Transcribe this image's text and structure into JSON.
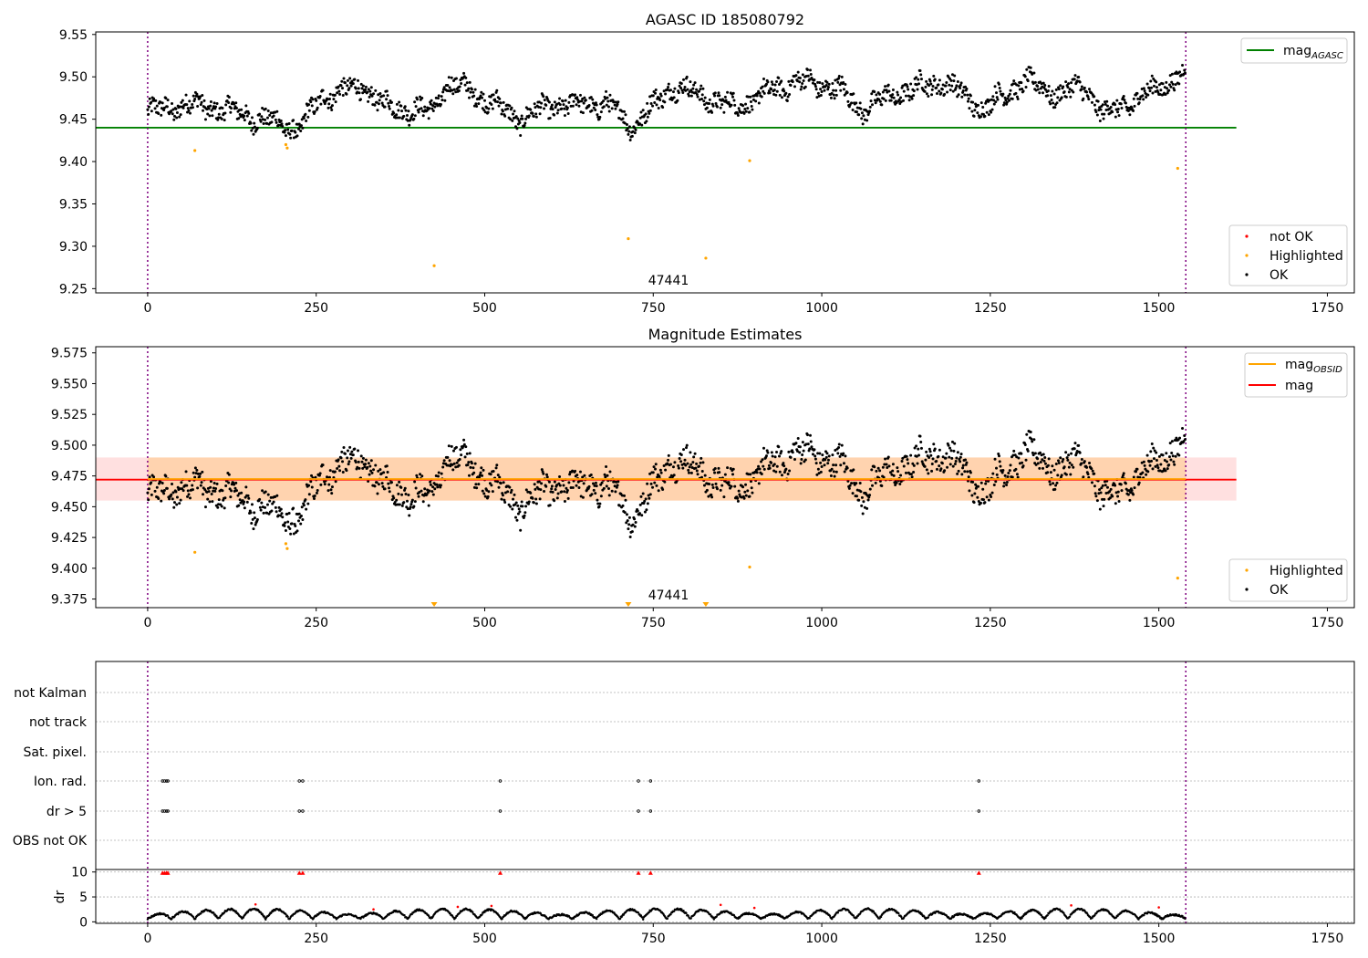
{
  "chart_data": [
    {
      "type": "scatter",
      "title": "AGASC ID 185080792",
      "xlim": [
        -77,
        1790
      ],
      "ylim": [
        9.245,
        9.553
      ],
      "xticks": [
        0,
        250,
        500,
        750,
        1000,
        1250,
        1500,
        1750
      ],
      "yticks": [
        9.25,
        9.3,
        9.35,
        9.4,
        9.45,
        9.5,
        9.55
      ],
      "ytick_labels": [
        "9.25",
        "9.30",
        "9.35",
        "9.40",
        "9.45",
        "9.50",
        "9.55"
      ],
      "obsid_label": "47441",
      "obs_boundaries": [
        0,
        1540
      ],
      "reference_line": {
        "name": "mag",
        "subscript": "AGASC",
        "y": 9.44,
        "color": "#008000",
        "x_range": [
          -77,
          1615
        ]
      },
      "legend_upper": [
        {
          "label": "mag",
          "subscript": "AGASC",
          "color": "#008000",
          "kind": "line"
        }
      ],
      "legend_lower": [
        {
          "label": "not OK",
          "color": "#ff0000",
          "kind": "dot"
        },
        {
          "label": "Highlighted",
          "color": "#ffa500",
          "kind": "dot"
        },
        {
          "label": "OK",
          "color": "#000000",
          "kind": "dot"
        }
      ],
      "series": [
        {
          "name": "Highlighted",
          "color": "#ffa500",
          "points": [
            [
              70,
              9.413
            ],
            [
              205,
              9.42
            ],
            [
              207,
              9.416
            ],
            [
              425,
              9.277
            ],
            [
              713,
              9.309
            ],
            [
              828,
              9.286
            ],
            [
              893,
              9.401
            ],
            [
              1528,
              9.392
            ]
          ]
        },
        {
          "name": "OK",
          "color": "#000000",
          "generated": true,
          "n": 1540,
          "anchors": [
            [
              0,
              9.458
            ],
            [
              60,
              9.468
            ],
            [
              110,
              9.462
            ],
            [
              190,
              9.446
            ],
            [
              225,
              9.438
            ],
            [
              260,
              9.478
            ],
            [
              320,
              9.488
            ],
            [
              350,
              9.466
            ],
            [
              420,
              9.458
            ],
            [
              445,
              9.492
            ],
            [
              490,
              9.48
            ],
            [
              550,
              9.45
            ],
            [
              600,
              9.466
            ],
            [
              680,
              9.468
            ],
            [
              720,
              9.442
            ],
            [
              780,
              9.49
            ],
            [
              820,
              9.478
            ],
            [
              870,
              9.464
            ],
            [
              960,
              9.495
            ],
            [
              1020,
              9.488
            ],
            [
              1060,
              9.462
            ],
            [
              1110,
              9.48
            ],
            [
              1180,
              9.495
            ],
            [
              1240,
              9.462
            ],
            [
              1300,
              9.495
            ],
            [
              1350,
              9.48
            ],
            [
              1390,
              9.488
            ],
            [
              1420,
              9.455
            ],
            [
              1470,
              9.475
            ],
            [
              1540,
              9.505
            ]
          ],
          "amplitude": 0.018
        }
      ]
    },
    {
      "type": "scatter",
      "title": "Magnitude Estimates",
      "xlim": [
        -77,
        1790
      ],
      "ylim": [
        9.368,
        9.58
      ],
      "xticks": [
        0,
        250,
        500,
        750,
        1000,
        1250,
        1500,
        1750
      ],
      "yticks": [
        9.375,
        9.4,
        9.425,
        9.45,
        9.475,
        9.5,
        9.525,
        9.55,
        9.575
      ],
      "ytick_labels": [
        "9.375",
        "9.400",
        "9.425",
        "9.450",
        "9.475",
        "9.500",
        "9.525",
        "9.550",
        "9.575"
      ],
      "obsid_label": "47441",
      "obs_boundaries": [
        0,
        1540
      ],
      "mag_obsid": {
        "y": 9.4725,
        "band": [
          9.455,
          9.49
        ],
        "x_range": [
          0,
          1540
        ],
        "color": "#ffa500"
      },
      "mag": {
        "y": 9.472,
        "band": [
          9.455,
          9.49
        ],
        "x_range": [
          -77,
          1615
        ],
        "color": "#ff0000"
      },
      "legend_upper": [
        {
          "label": "mag",
          "subscript": "OBSID",
          "color": "#ffa500",
          "kind": "line"
        },
        {
          "label": "mag",
          "subscript": "",
          "color": "#ff0000",
          "kind": "line"
        }
      ],
      "legend_lower": [
        {
          "label": "Highlighted",
          "color": "#ffa500",
          "kind": "dot"
        },
        {
          "label": "OK",
          "color": "#000000",
          "kind": "dot"
        }
      ],
      "offscale_markers_x": [
        425,
        713,
        828
      ],
      "series": [
        {
          "name": "Highlighted",
          "color": "#ffa500",
          "points": [
            [
              70,
              9.413
            ],
            [
              205,
              9.42
            ],
            [
              207,
              9.416
            ],
            [
              893,
              9.401
            ],
            [
              1528,
              9.392
            ]
          ]
        },
        {
          "name": "OK",
          "color": "#000000",
          "generated": true,
          "same_as_panel": 0
        }
      ]
    },
    {
      "type": "scatter",
      "title": "",
      "xlim": [
        -77,
        1790
      ],
      "xticks": [
        0,
        250,
        500,
        750,
        1000,
        1250,
        1500,
        1750
      ],
      "obs_boundaries": [
        0,
        1540
      ],
      "flag_rows": [
        "not Kalman",
        "not track",
        "Sat. pixel.",
        "Ion. rad.",
        "dr > 5",
        "OBS not OK"
      ],
      "flag_points": {
        "Ion. rad.": [
          22,
          25,
          28,
          30,
          225,
          230,
          523,
          728,
          746,
          1233
        ],
        "dr > 5": [
          22,
          25,
          28,
          30,
          225,
          230,
          523,
          728,
          746,
          1233
        ]
      },
      "dr": {
        "ylabel": "dr",
        "ylim": [
          -0.3,
          10.5
        ],
        "yticks": [
          0,
          5,
          10
        ],
        "outliers_x": [
          22,
          25,
          28,
          30,
          225,
          230,
          523,
          728,
          746,
          1233
        ],
        "red_points": [
          [
            160,
            3.5
          ],
          [
            335,
            2.5
          ],
          [
            460,
            3.0
          ],
          [
            510,
            3.2
          ],
          [
            850,
            3.4
          ],
          [
            900,
            2.8
          ],
          [
            1370,
            3.3
          ],
          [
            1500,
            2.9
          ]
        ],
        "generated": true,
        "period": 35
      }
    }
  ]
}
